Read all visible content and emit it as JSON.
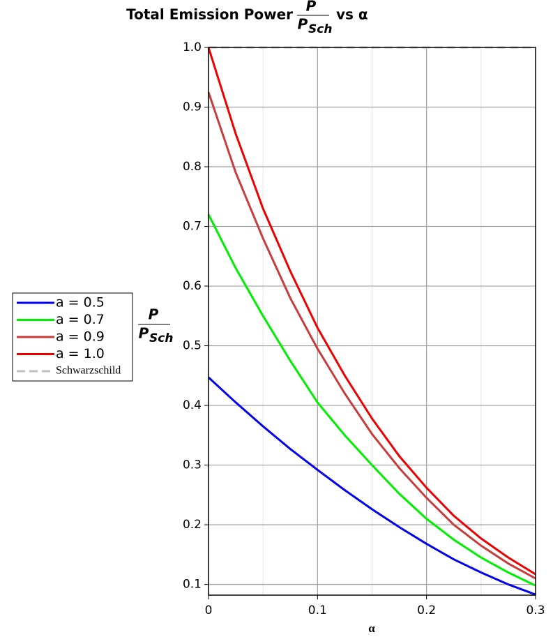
{
  "chart_data": {
    "type": "line",
    "title": [
      "Total Emission Power",
      "vs α"
    ],
    "ylabel": {
      "numerator": "P",
      "denominator": "P",
      "subscript": "Sch"
    },
    "xlabel": "α",
    "x": [
      0,
      0.025,
      0.05,
      0.075,
      0.1,
      0.125,
      0.15,
      0.175,
      0.2,
      0.225,
      0.25,
      0.275,
      0.3
    ],
    "series": [
      {
        "name": "a = 0.5",
        "color": "#0000ee",
        "values": [
          0.447,
          0.405,
          0.365,
          0.327,
          0.292,
          0.258,
          0.226,
          0.196,
          0.168,
          0.142,
          0.12,
          0.1,
          0.083
        ]
      },
      {
        "name": "a = 0.7",
        "color": "#00ee00",
        "values": [
          0.72,
          0.63,
          0.55,
          0.475,
          0.405,
          0.35,
          0.3,
          0.252,
          0.21,
          0.175,
          0.145,
          0.12,
          0.098
        ]
      },
      {
        "name": "a = 0.9",
        "color": "#c83c3c",
        "values": [
          0.925,
          0.79,
          0.68,
          0.58,
          0.495,
          0.42,
          0.352,
          0.295,
          0.245,
          0.2,
          0.165,
          0.135,
          0.11
        ]
      },
      {
        "name": "a = 1.0",
        "color": "#ee0000",
        "values": [
          1.0,
          0.855,
          0.73,
          0.625,
          0.53,
          0.45,
          0.378,
          0.315,
          0.262,
          0.215,
          0.177,
          0.145,
          0.117
        ]
      },
      {
        "name": "Schwarzschild",
        "color": "#c0c0c0",
        "dashed": true,
        "values": [
          1,
          1,
          1,
          1,
          1,
          1,
          1,
          1,
          1,
          1,
          1,
          1,
          1
        ]
      }
    ],
    "xlim": [
      0,
      0.3
    ],
    "ylim": [
      0.082,
      1.0
    ],
    "xticks": [
      0,
      0.1,
      0.2,
      0.3
    ],
    "x_minor_grid": [
      0.05,
      0.15,
      0.25
    ],
    "yticks": [
      0.1,
      0.2,
      0.3,
      0.4,
      0.5,
      0.6,
      0.7,
      0.8,
      0.9,
      {
        "value": 1.0,
        "label": "1.0"
      }
    ],
    "grid": true,
    "legend": "left"
  }
}
